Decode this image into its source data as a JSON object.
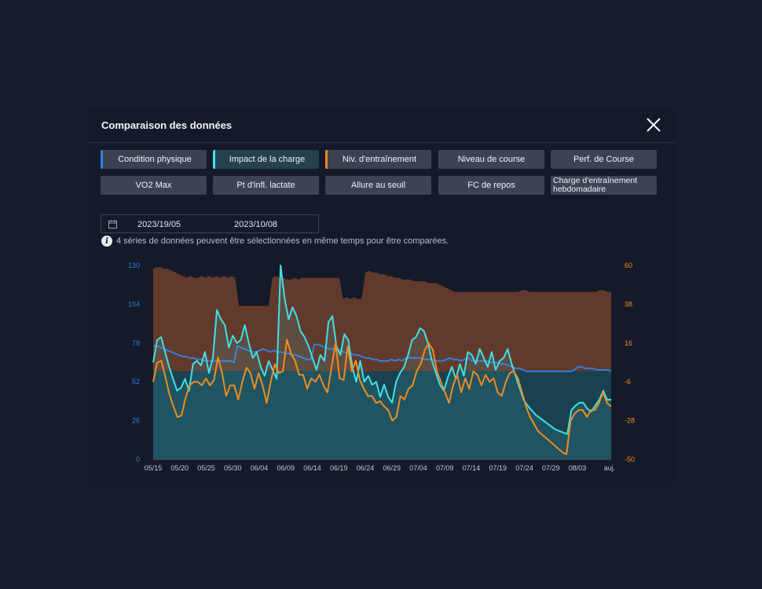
{
  "modal": {
    "title": "Comparaison des données",
    "close_icon": "close-icon"
  },
  "filters": [
    {
      "label": "Condition physique",
      "selected": true,
      "color": "#2f7fe0"
    },
    {
      "label": "Impact de la charge",
      "selected": true,
      "color": "#3fe0e6"
    },
    {
      "label": "Niv. d'entraînement",
      "selected": true,
      "color": "#f08c1e"
    },
    {
      "label": "Niveau de course",
      "selected": false
    },
    {
      "label": "Perf. de Course",
      "selected": false
    },
    {
      "label": "VO2 Max",
      "selected": false
    },
    {
      "label": "Pt d'infl. lactate",
      "selected": false
    },
    {
      "label": "Allure au seuil",
      "selected": false
    },
    {
      "label": "FC de repos",
      "selected": false
    },
    {
      "label": "Charge d'entraînement hebdomadaire",
      "selected": false
    }
  ],
  "date_range": {
    "icon": "calendar-icon",
    "start": "2023/19/05",
    "end": "2023/10/08"
  },
  "info": {
    "icon": "info-icon",
    "text": "4 séries de données peuvent être sélectionnées en même temps pour être comparées."
  },
  "chart_data": {
    "type": "line",
    "x_ticks": [
      "05/15",
      "05/20",
      "05/25",
      "05/30",
      "06/04",
      "06/09",
      "06/14",
      "06/19",
      "06/24",
      "06/29",
      "07/04",
      "07/09",
      "07/14",
      "07/19",
      "07/24",
      "07/29",
      "08/03",
      "auj."
    ],
    "y_left": {
      "ticks": [
        0,
        26,
        52,
        78,
        104,
        130
      ],
      "range": [
        0,
        130
      ],
      "color": "#2f7fe0"
    },
    "y_right": {
      "ticks": [
        -50,
        -28,
        -6,
        16,
        38,
        60
      ],
      "range": [
        -50,
        60
      ],
      "color": "#f08c1e"
    },
    "grid": false,
    "colors": {
      "area_positive": "#6a3e2c",
      "area_negative": "#1c4654",
      "blue": "#2f7fe0",
      "cyan": "#3fe0e6",
      "orange": "#f08c1e"
    },
    "series": [
      {
        "axis": "right",
        "type": "area",
        "values": [
          58,
          59,
          59,
          58,
          58,
          57,
          56,
          55,
          54,
          53,
          54,
          53,
          53,
          54,
          53,
          54,
          53,
          54,
          53,
          54,
          53,
          54,
          53,
          37,
          37,
          37,
          37,
          37,
          37,
          37,
          37,
          37,
          53,
          54,
          53,
          53,
          52,
          52,
          53,
          52,
          53,
          53,
          53,
          53,
          53,
          53,
          53,
          53,
          53,
          53,
          53,
          41,
          42,
          41,
          42,
          41,
          41,
          56,
          57,
          56,
          56,
          55,
          55,
          54,
          54,
          53,
          53,
          52,
          52,
          52,
          51,
          51,
          51,
          51,
          50,
          50,
          50,
          49,
          48,
          47,
          46,
          45,
          45,
          45,
          45,
          45,
          45,
          45,
          45,
          45,
          45,
          45,
          45,
          45,
          45,
          45,
          45,
          45,
          45,
          46,
          46,
          45,
          45,
          45,
          45,
          45,
          45,
          45,
          45,
          45,
          45,
          45,
          45,
          45,
          45,
          45,
          45,
          45,
          45,
          45,
          46,
          46,
          45,
          45
        ]
      },
      {
        "axis": "left",
        "type": "line",
        "values": [
          76,
          76,
          75,
          74,
          73,
          72,
          71,
          70,
          69,
          69,
          68,
          68,
          67,
          67,
          66,
          66,
          66,
          66,
          66,
          66,
          66,
          66,
          65,
          76,
          75,
          74,
          73,
          72,
          72,
          73,
          74,
          73,
          72,
          73,
          72,
          72,
          71,
          71,
          70,
          70,
          69,
          68,
          67,
          67,
          77,
          77,
          76,
          75,
          74,
          74,
          73,
          73,
          72,
          71,
          71,
          70,
          70,
          69,
          68,
          68,
          67,
          67,
          66,
          66,
          66,
          67,
          66,
          67,
          66,
          68,
          68,
          68,
          68,
          68,
          67,
          67,
          67,
          66,
          66,
          66,
          67,
          68,
          67,
          67,
          66,
          67,
          68,
          66,
          66,
          66,
          66,
          66,
          65,
          65,
          65,
          64,
          64,
          63,
          62,
          61,
          61,
          60,
          59,
          59,
          59,
          59,
          59,
          59,
          59,
          59,
          59,
          59,
          59,
          59,
          59,
          60,
          62,
          62,
          61,
          61,
          61,
          60,
          60,
          60,
          60,
          59
        ]
      },
      {
        "axis": "left",
        "type": "line",
        "values": [
          65,
          80,
          82,
          72,
          62,
          54,
          46,
          48,
          54,
          46,
          64,
          66,
          63,
          72,
          58,
          68,
          100,
          94,
          90,
          75,
          83,
          78,
          80,
          90,
          78,
          68,
          72,
          62,
          56,
          66,
          60,
          54,
          130,
          108,
          94,
          102,
          96,
          86,
          82,
          76,
          68,
          60,
          70,
          66,
          92,
          96,
          76,
          70,
          84,
          80,
          62,
          52,
          66,
          52,
          56,
          50,
          52,
          42,
          50,
          42,
          38,
          52,
          58,
          62,
          70,
          80,
          82,
          88,
          86,
          78,
          66,
          58,
          50,
          46,
          55,
          62,
          54,
          64,
          56,
          72,
          70,
          64,
          74,
          68,
          62,
          72,
          60,
          66,
          68,
          74,
          64,
          56,
          48,
          40,
          36,
          33,
          30,
          28,
          26,
          24,
          22,
          20,
          19,
          18,
          17,
          33,
          36,
          38,
          38,
          34,
          32,
          36,
          40,
          46,
          40,
          40
        ]
      },
      {
        "axis": "right",
        "type": "line",
        "values": [
          -6,
          5,
          6,
          -3,
          -13,
          -20,
          -26,
          -25,
          -15,
          -8,
          -6,
          -6,
          -8,
          -4,
          -8,
          -5,
          8,
          -1,
          -14,
          -8,
          -8,
          -16,
          -6,
          2,
          -1,
          -10,
          -1,
          -8,
          -18,
          -6,
          4,
          -1,
          0,
          18,
          10,
          6,
          -2,
          -2,
          -10,
          -4,
          -6,
          -2,
          -8,
          -12,
          2,
          16,
          -4,
          -5,
          14,
          0,
          6,
          -5,
          -10,
          -14,
          -14,
          -18,
          -17,
          -20,
          -22,
          -28,
          -26,
          -14,
          -16,
          -10,
          -8,
          0,
          4,
          12,
          16,
          12,
          0,
          -6,
          -12,
          -18,
          -8,
          -2,
          -12,
          -4,
          -10,
          0,
          -2,
          -8,
          -2,
          -6,
          -4,
          -12,
          -14,
          -6,
          -1,
          0,
          -4,
          -12,
          -20,
          -26,
          -30,
          -34,
          -36,
          -38,
          -40,
          -42,
          -44,
          -46,
          -47,
          -28,
          -24,
          -22,
          -22,
          -26,
          -22,
          -22,
          -18,
          -12,
          -18,
          -20
        ]
      }
    ]
  }
}
